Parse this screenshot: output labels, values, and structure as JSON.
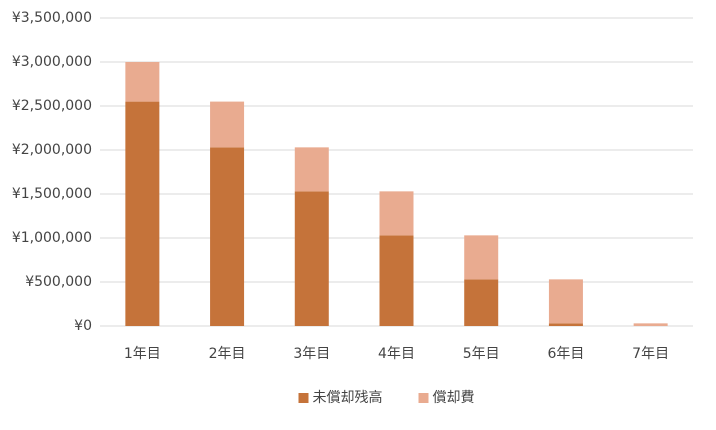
{
  "chart_data": {
    "type": "stacked_bar",
    "categories": [
      "1年目",
      "2年目",
      "3年目",
      "4年目",
      "5年目",
      "6年目",
      "7年目"
    ],
    "series": [
      {
        "name": "未償却残高",
        "color": "#c5733a",
        "values": [
          2550000,
          2030000,
          1530000,
          1030000,
          530000,
          30000,
          0
        ]
      },
      {
        "name": "償却費",
        "color": "#e9ab90",
        "values": [
          450000,
          520000,
          500000,
          500000,
          500000,
          500000,
          30000
        ]
      }
    ],
    "ylim": [
      0,
      3500000
    ],
    "yticks": [
      {
        "value": 0,
        "label": "¥0"
      },
      {
        "value": 500000,
        "label": "¥500,000"
      },
      {
        "value": 1000000,
        "label": "¥1,000,000"
      },
      {
        "value": 1500000,
        "label": "¥1,500,000"
      },
      {
        "value": 2000000,
        "label": "¥2,000,000"
      },
      {
        "value": 2500000,
        "label": "¥2,500,000"
      },
      {
        "value": 3000000,
        "label": "¥3,000,000"
      },
      {
        "value": 3500000,
        "label": "¥3,500,000"
      }
    ],
    "grid": true,
    "legend": "bottom"
  }
}
